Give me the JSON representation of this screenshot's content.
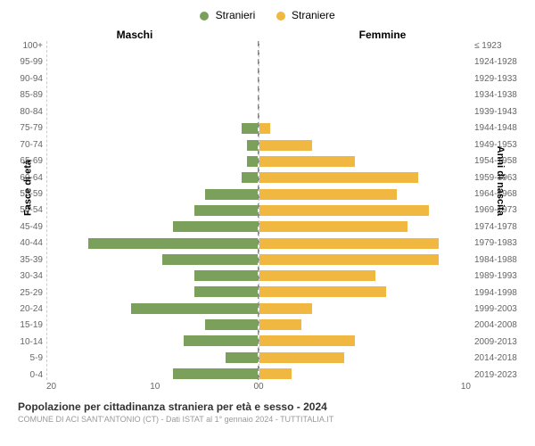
{
  "chart": {
    "type": "population-pyramid",
    "legend": {
      "male": {
        "label": "Stranieri",
        "color": "#7ba05b"
      },
      "female": {
        "label": "Straniere",
        "color": "#f0b840"
      }
    },
    "header_left": "Maschi",
    "header_right": "Femmine",
    "y_label_left": "Fasce di età",
    "y_label_right": "Anni di nascita",
    "age_labels": [
      "100+",
      "95-99",
      "90-94",
      "85-89",
      "80-84",
      "75-79",
      "70-74",
      "65-69",
      "60-64",
      "55-59",
      "50-54",
      "45-49",
      "40-44",
      "35-39",
      "30-34",
      "25-29",
      "20-24",
      "15-19",
      "10-14",
      "5-9",
      "0-4"
    ],
    "birth_labels": [
      "≤ 1923",
      "1924-1928",
      "1929-1933",
      "1934-1938",
      "1939-1943",
      "1944-1948",
      "1949-1953",
      "1954-1958",
      "1959-1963",
      "1964-1968",
      "1969-1973",
      "1974-1978",
      "1979-1983",
      "1984-1988",
      "1989-1993",
      "1994-1998",
      "1999-2003",
      "2004-2008",
      "2009-2013",
      "2014-2018",
      "2019-2023"
    ],
    "male_values": [
      0,
      0,
      0,
      0,
      0,
      1.5,
      1,
      1,
      1.5,
      5,
      6,
      8,
      16,
      9,
      6,
      6,
      12,
      5,
      7,
      3,
      8
    ],
    "female_values": [
      0,
      0,
      0,
      0,
      0,
      1,
      5,
      9,
      15,
      13,
      16,
      14,
      17,
      17,
      11,
      12,
      5,
      4,
      9,
      8,
      3
    ],
    "x_max": 20,
    "x_ticks_left": [
      "20",
      "10",
      "0"
    ],
    "x_ticks_right": [
      "0",
      "10"
    ],
    "bar_color_male": "#7ba05b",
    "bar_color_female": "#f0b840",
    "background_color": "#ffffff",
    "grid_color": "#cccccc",
    "center_line_color": "#888888"
  },
  "footer": {
    "title": "Popolazione per cittadinanza straniera per età e sesso - 2024",
    "subtitle": "COMUNE DI ACI SANT'ANTONIO (CT) - Dati ISTAT al 1° gennaio 2024 - TUTTITALIA.IT"
  }
}
